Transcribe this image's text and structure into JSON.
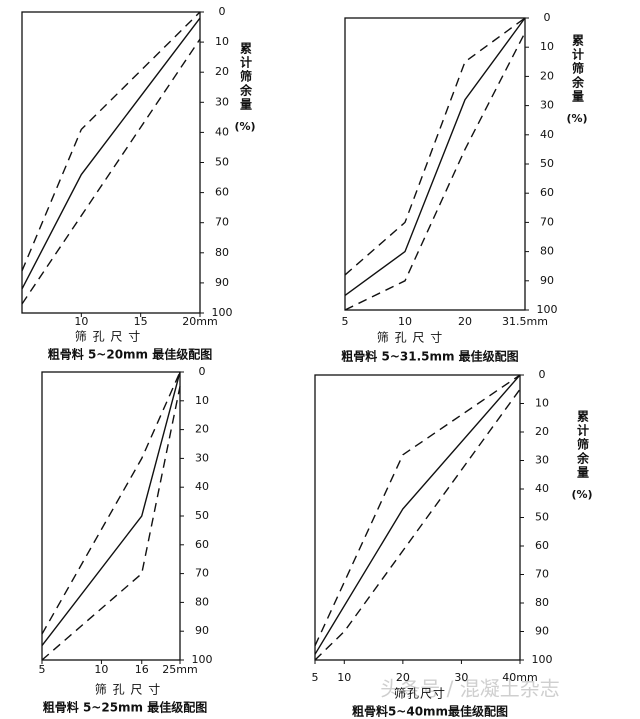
{
  "chart_data": [
    {
      "type": "line",
      "caption": "粗骨料 5~20mm 最佳级配图",
      "xlabel": "筛 孔 尺 寸",
      "ylabel": "累计筛余量",
      "yunit": "(%)",
      "xlim": [
        5,
        20
      ],
      "xticks": [
        10,
        15,
        {
          "value": 20,
          "label": "20mm"
        }
      ],
      "ylim": [
        100,
        0
      ],
      "yticks": [
        0,
        10,
        20,
        30,
        40,
        50,
        60,
        70,
        80,
        90,
        100
      ],
      "series": [
        {
          "color": "#111",
          "style": "solid",
          "x": [
            5,
            10,
            20
          ],
          "values": [
            92,
            54,
            2
          ]
        },
        {
          "color": "#111",
          "style": "dashed",
          "x": [
            5,
            10,
            20
          ],
          "values": [
            86,
            39,
            0
          ]
        },
        {
          "color": "#111",
          "style": "dashed",
          "x": [
            5,
            20
          ],
          "values": [
            97,
            9
          ]
        }
      ]
    },
    {
      "type": "line",
      "caption": "粗骨料 5~31.5mm 最佳级配图",
      "xlabel": "筛 孔 尺 寸",
      "ylabel": "累计筛余量",
      "yunit": "(%)",
      "categories": [
        "5",
        "10",
        "20",
        "31.5mm"
      ],
      "ylim": [
        100,
        0
      ],
      "yticks": [
        0,
        10,
        20,
        30,
        40,
        50,
        60,
        70,
        80,
        90,
        100
      ],
      "series": [
        {
          "color": "#111",
          "style": "solid",
          "values": [
            95,
            80,
            28,
            0
          ]
        },
        {
          "color": "#111",
          "style": "dashed",
          "values": [
            88,
            70,
            15,
            0
          ]
        },
        {
          "color": "#111",
          "style": "dashed",
          "values": [
            100,
            90,
            45,
            5
          ]
        }
      ]
    },
    {
      "type": "line",
      "caption": "粗骨料 5~25mm 最佳级配图",
      "xlabel": "筛 孔 尺 寸",
      "xscale": "log",
      "xlim": [
        5,
        25
      ],
      "xticks": [
        5,
        10,
        16,
        {
          "value": 25,
          "label": "25mm"
        }
      ],
      "ylim": [
        100,
        0
      ],
      "yticks": [
        0,
        10,
        20,
        30,
        40,
        50,
        60,
        70,
        80,
        90,
        100
      ],
      "series": [
        {
          "color": "#111",
          "style": "solid",
          "x": [
            5,
            16,
            25
          ],
          "values": [
            95,
            50,
            0
          ]
        },
        {
          "color": "#111",
          "style": "dashed",
          "x": [
            5,
            16,
            25
          ],
          "values": [
            91,
            30,
            0
          ]
        },
        {
          "color": "#111",
          "style": "dashed",
          "x": [
            5,
            16,
            25
          ],
          "values": [
            100,
            70,
            5
          ]
        }
      ]
    },
    {
      "type": "line",
      "caption": "粗骨料5~40mm最佳级配图",
      "xlabel": "筛孔尺寸",
      "ylabel": "累计筛余量",
      "yunit": "(%)",
      "xlim": [
        5,
        40
      ],
      "xticks": [
        5,
        10,
        20,
        30,
        {
          "value": 40,
          "label": "40mm"
        }
      ],
      "ylim": [
        100,
        0
      ],
      "yticks": [
        0,
        10,
        20,
        30,
        40,
        50,
        60,
        70,
        80,
        90,
        100
      ],
      "series": [
        {
          "color": "#111",
          "style": "solid",
          "x": [
            5,
            20,
            40
          ],
          "values": [
            98,
            47,
            0
          ]
        },
        {
          "color": "#111",
          "style": "dashed",
          "x": [
            5,
            20,
            40
          ],
          "values": [
            95,
            28,
            0
          ]
        },
        {
          "color": "#111",
          "style": "dashed",
          "x": [
            5,
            10,
            40
          ],
          "values": [
            100,
            90,
            5
          ]
        }
      ]
    }
  ],
  "watermark": "头条号 / 混凝土杂志"
}
